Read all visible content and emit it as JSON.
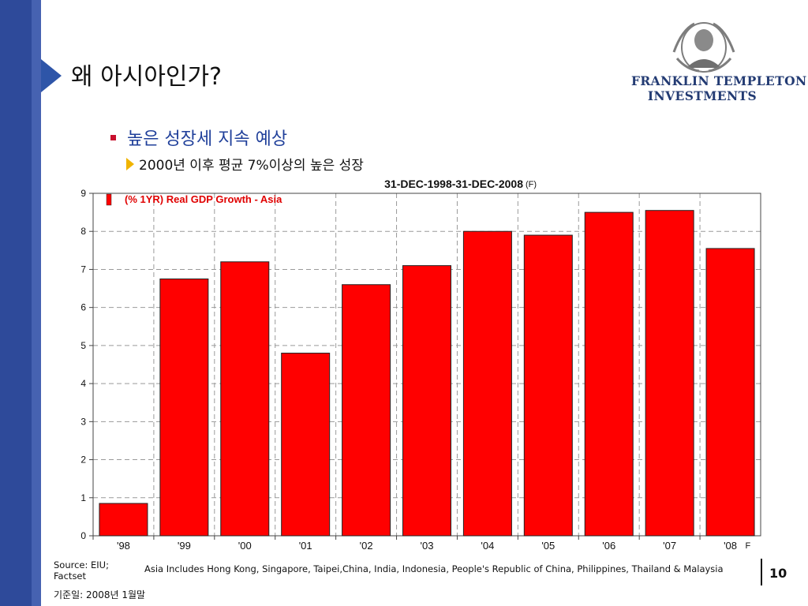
{
  "slide": {
    "title": "왜 아시아인가?",
    "bullet1": "높은 성장세 지속 예상",
    "bullet2": "2000년 이후 평균 7%이상의 높은 성장"
  },
  "logo": {
    "line1": "FRANKLIN TEMPLETON",
    "line2": "INVESTMENTS"
  },
  "footer": {
    "source": "Source: EIU; Factset",
    "note": "Asia Includes Hong Kong, Singapore, Taipei,China, India, Indonesia, People's Republic of China, Philippines, Thailand & Malaysia",
    "date": "기준일: 2008년 1월말",
    "page": "10"
  },
  "colors": {
    "band": "#2e4a9a",
    "bar": "#ff0000",
    "title_blue": "#1f3f9a"
  },
  "chart_data": {
    "type": "bar",
    "title": "31-DEC-1998-31-DEC-2008",
    "title_suffix": "(F)",
    "categories": [
      "'98",
      "'99",
      "'00",
      "'01",
      "'02",
      "'03",
      "'04",
      "'05",
      "'06",
      "'07",
      "'08"
    ],
    "category_suffix_last": "F",
    "series": [
      {
        "name": "(% 1YR) Real GDP Growth - Asia",
        "values": [
          0.85,
          6.75,
          7.2,
          4.8,
          6.6,
          7.1,
          8.0,
          7.9,
          8.5,
          8.55,
          7.55
        ]
      }
    ],
    "ylim": [
      0,
      9
    ],
    "yticks": [
      "0",
      "1",
      "2",
      "3",
      "4",
      "5",
      "6",
      "7",
      "8",
      "9"
    ],
    "grid": true,
    "legend": "top-left"
  }
}
